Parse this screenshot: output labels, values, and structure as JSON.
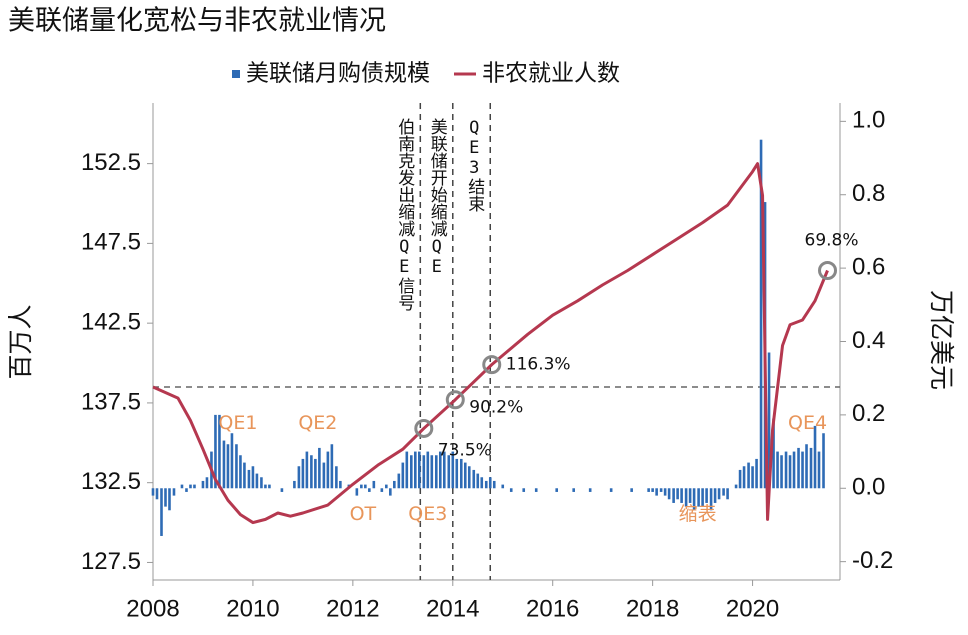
{
  "chart_data": {
    "type": "bar-line",
    "title": "美联储量化宽松与非农就业情况",
    "y_label": "百万人",
    "y2_label": "万亿美元",
    "xlim": [
      2008,
      2021.75
    ],
    "xticks": [
      2008,
      2010,
      2012,
      2014,
      2016,
      2018,
      2020
    ],
    "ylim": [
      126.4,
      156.3
    ],
    "yticks": [
      127.5,
      132.5,
      137.5,
      142.5,
      147.5,
      152.5
    ],
    "y2lim": [
      -0.25,
      1.05
    ],
    "y2ticks": [
      {
        "value": -0.2,
        "label": "-0.2"
      },
      {
        "value": 0,
        "label": "0.0"
      },
      0.2,
      0.4,
      0.6,
      0.8,
      {
        "value": 1,
        "label": "1.0"
      }
    ],
    "legend": "top",
    "series": [
      {
        "name": "美联储月购债规模",
        "type": "bar",
        "axis": "y2",
        "color": "#2e6bb5",
        "x": [
          2008.0,
          2008.08,
          2008.17,
          2008.25,
          2008.33,
          2008.42,
          2008.5,
          2008.58,
          2008.67,
          2008.75,
          2008.83,
          2008.92,
          2009.0,
          2009.08,
          2009.17,
          2009.25,
          2009.33,
          2009.42,
          2009.5,
          2009.58,
          2009.67,
          2009.75,
          2009.83,
          2009.92,
          2010.0,
          2010.08,
          2010.17,
          2010.25,
          2010.33,
          2010.42,
          2010.5,
          2010.58,
          2010.67,
          2010.75,
          2010.83,
          2010.92,
          2011.0,
          2011.08,
          2011.17,
          2011.25,
          2011.33,
          2011.42,
          2011.5,
          2011.58,
          2011.67,
          2011.75,
          2011.83,
          2011.92,
          2012.0,
          2012.08,
          2012.17,
          2012.25,
          2012.33,
          2012.42,
          2012.5,
          2012.58,
          2012.67,
          2012.75,
          2012.83,
          2012.92,
          2013.0,
          2013.08,
          2013.17,
          2013.25,
          2013.33,
          2013.42,
          2013.5,
          2013.58,
          2013.67,
          2013.75,
          2013.83,
          2013.92,
          2014.0,
          2014.08,
          2014.17,
          2014.25,
          2014.33,
          2014.42,
          2014.5,
          2014.58,
          2014.67,
          2014.75,
          2014.83,
          2014.92,
          2015.0,
          2015.08,
          2015.17,
          2015.25,
          2015.33,
          2015.42,
          2015.5,
          2015.58,
          2015.67,
          2015.75,
          2015.83,
          2015.92,
          2016.0,
          2016.08,
          2016.17,
          2016.25,
          2016.33,
          2016.42,
          2016.5,
          2016.58,
          2016.67,
          2016.75,
          2016.83,
          2016.92,
          2017.0,
          2017.08,
          2017.17,
          2017.25,
          2017.33,
          2017.42,
          2017.5,
          2017.58,
          2017.67,
          2017.75,
          2017.83,
          2017.92,
          2018.0,
          2018.08,
          2018.17,
          2018.25,
          2018.33,
          2018.42,
          2018.5,
          2018.58,
          2018.67,
          2018.75,
          2018.83,
          2018.92,
          2019.0,
          2019.08,
          2019.17,
          2019.25,
          2019.33,
          2019.42,
          2019.5,
          2019.58,
          2019.67,
          2019.75,
          2019.83,
          2019.92,
          2020.0,
          2020.08,
          2020.17,
          2020.25,
          2020.33,
          2020.42,
          2020.5,
          2020.58,
          2020.67,
          2020.75,
          2020.83,
          2020.92,
          2021.0,
          2021.08,
          2021.17,
          2021.25,
          2021.33,
          2021.42
        ],
        "values": [
          -0.02,
          -0.03,
          -0.13,
          -0.05,
          -0.06,
          -0.02,
          0.0,
          0.01,
          -0.01,
          0.01,
          0.01,
          0.0,
          0.02,
          0.03,
          0.1,
          0.2,
          0.2,
          0.13,
          0.12,
          0.15,
          0.12,
          0.09,
          0.07,
          0.05,
          0.06,
          0.04,
          0.03,
          0.01,
          0.01,
          0.0,
          0.0,
          -0.01,
          0.0,
          0.0,
          0.02,
          0.06,
          0.08,
          0.1,
          0.09,
          0.08,
          0.11,
          0.07,
          0.1,
          0.12,
          0.06,
          0.02,
          0.0,
          0.01,
          0.0,
          -0.02,
          0.01,
          0.01,
          -0.01,
          0.02,
          0.0,
          -0.01,
          0.01,
          -0.02,
          0.02,
          0.04,
          0.07,
          0.1,
          0.09,
          0.1,
          0.1,
          0.09,
          0.1,
          0.09,
          0.09,
          0.1,
          0.1,
          0.09,
          0.1,
          0.08,
          0.08,
          0.07,
          0.06,
          0.05,
          0.04,
          0.03,
          0.02,
          0.03,
          0.02,
          0.0,
          0.01,
          0.0,
          -0.01,
          0.0,
          0.0,
          -0.01,
          0.0,
          0.0,
          -0.01,
          0.0,
          0.0,
          0.0,
          0.0,
          -0.01,
          0.0,
          0.0,
          0.0,
          -0.01,
          0.0,
          0.0,
          0.0,
          -0.01,
          0.0,
          0.0,
          0.0,
          0.0,
          -0.01,
          0.0,
          0.0,
          0.0,
          0.0,
          -0.01,
          0.0,
          0.0,
          0.0,
          -0.01,
          -0.01,
          -0.02,
          -0.01,
          -0.02,
          -0.03,
          -0.04,
          -0.03,
          -0.04,
          -0.05,
          -0.04,
          -0.06,
          -0.05,
          -0.05,
          -0.04,
          -0.06,
          -0.04,
          -0.03,
          -0.02,
          -0.03,
          0.0,
          0.01,
          0.05,
          0.06,
          0.07,
          0.06,
          0.08,
          0.95,
          0.78,
          0.37,
          0.19,
          0.1,
          0.09,
          0.1,
          0.09,
          0.1,
          0.11,
          0.1,
          0.12,
          0.11,
          0.17,
          0.1,
          0.15
        ]
      },
      {
        "name": "非农就业人数",
        "type": "line",
        "axis": "y",
        "color": "#b5384f",
        "x": [
          2008.0,
          2008.5,
          2008.75,
          2009.0,
          2009.25,
          2009.5,
          2009.75,
          2010.0,
          2010.25,
          2010.5,
          2010.75,
          2011.0,
          2011.5,
          2012.0,
          2012.5,
          2013.0,
          2013.42,
          2014.05,
          2014.78,
          2015.5,
          2016.0,
          2016.5,
          2017.0,
          2017.5,
          2018.0,
          2018.5,
          2019.0,
          2019.5,
          2020.0,
          2020.1,
          2020.2,
          2020.3,
          2020.4,
          2020.6,
          2020.75,
          2021.0,
          2021.25,
          2021.5
        ],
        "values": [
          138.5,
          137.8,
          136.4,
          134.6,
          132.7,
          131.4,
          130.5,
          130.0,
          130.2,
          130.6,
          130.4,
          130.6,
          131.1,
          132.4,
          133.6,
          134.6,
          135.9,
          137.7,
          139.9,
          141.8,
          143.0,
          143.9,
          144.9,
          145.8,
          146.8,
          147.8,
          148.8,
          149.9,
          152.0,
          152.5,
          150.5,
          130.2,
          135.8,
          141.1,
          142.4,
          142.7,
          143.9,
          145.8
        ]
      }
    ],
    "reference_line": 138.5,
    "highlights": [
      {
        "x": 2013.42,
        "y": 135.9,
        "label": "73.5%"
      },
      {
        "x": 2014.05,
        "y": 137.7,
        "label": "90.2%"
      },
      {
        "x": 2014.78,
        "y": 139.9,
        "label": "116.3%"
      },
      {
        "x": 2021.5,
        "y": 145.8,
        "label": "69.8%"
      }
    ],
    "events": [
      {
        "x": 2013.35,
        "label": "伯南克发出缩减QE信号"
      },
      {
        "x": 2014.0,
        "label": "美联储开始缩减QE"
      },
      {
        "x": 2014.75,
        "label": "QE3结束"
      }
    ],
    "phases": [
      {
        "x": 2009.7,
        "y": 136.2,
        "label": "QE1"
      },
      {
        "x": 2011.3,
        "y": 136.2,
        "label": "QE2"
      },
      {
        "x": 2012.2,
        "y": 130.5,
        "label": "OT"
      },
      {
        "x": 2013.5,
        "y": 130.5,
        "label": "QE3"
      },
      {
        "x": 2018.9,
        "y": 130.5,
        "label": "缩表"
      },
      {
        "x": 2021.1,
        "y": 136.2,
        "label": "QE4"
      }
    ]
  }
}
